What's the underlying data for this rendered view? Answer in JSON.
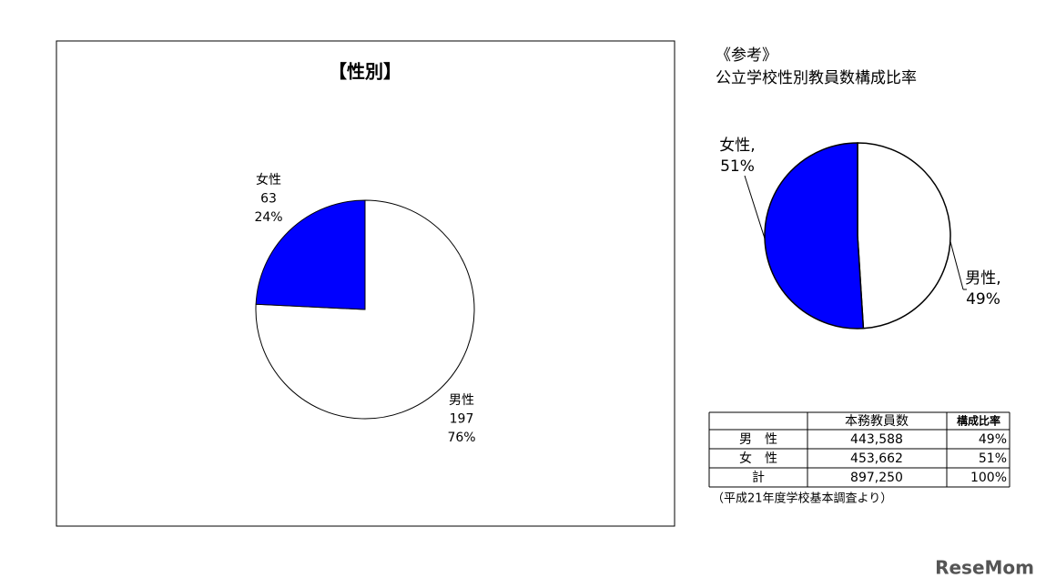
{
  "chart_data": [
    {
      "type": "pie",
      "title": "【性別】",
      "categories": [
        "男性",
        "女性"
      ],
      "values": [
        197,
        63
      ],
      "percent_labels": [
        "76%",
        "24%"
      ],
      "colors": [
        "#ffffff",
        "#0000ff"
      ]
    },
    {
      "type": "pie",
      "title": "《参考》",
      "subtitle": "公立学校性別教員数構成比率",
      "categories": [
        "男性,",
        "女性,"
      ],
      "values": [
        49,
        51
      ],
      "value_labels": [
        "49%",
        "51%"
      ],
      "colors": [
        "#ffffff",
        "#0000ff"
      ]
    }
  ],
  "table": {
    "header": [
      "本務教員数",
      "構成比率"
    ],
    "rows": [
      [
        "男　性",
        "443,588",
        "49%"
      ],
      [
        "女　性",
        "453,662",
        "51%"
      ],
      [
        "計",
        "897,250",
        "100%"
      ]
    ],
    "note": "（平成21年度学校基本調査より）"
  },
  "watermark": "ReseMom"
}
